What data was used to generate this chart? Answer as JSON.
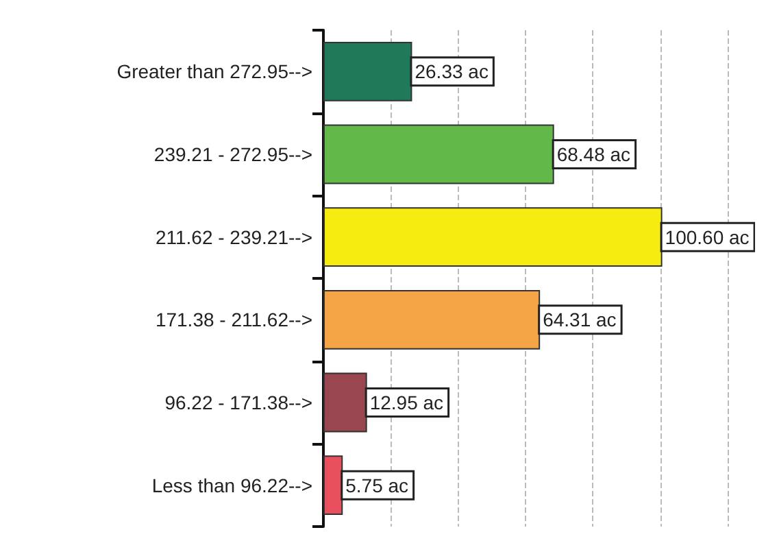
{
  "chart_data": {
    "type": "bar",
    "orientation": "horizontal",
    "categories": [
      "Greater than 272.95-->",
      "239.21 - 272.95-->",
      "211.62 - 239.21-->",
      "171.38 - 211.62-->",
      "96.22 - 171.38-->",
      "Less than 96.22-->"
    ],
    "values": [
      26.33,
      68.48,
      100.6,
      64.31,
      12.95,
      5.75
    ],
    "value_labels": [
      "26.33 ac",
      "68.48 ac",
      "100.60 ac",
      "64.31 ac",
      "12.95 ac",
      "5.75 ac"
    ],
    "colors": [
      "#1e7a58",
      "#62b848",
      "#f7ec10",
      "#f5a445",
      "#9a4650",
      "#e8505e"
    ],
    "grid": "x",
    "tick_labels": "y"
  }
}
